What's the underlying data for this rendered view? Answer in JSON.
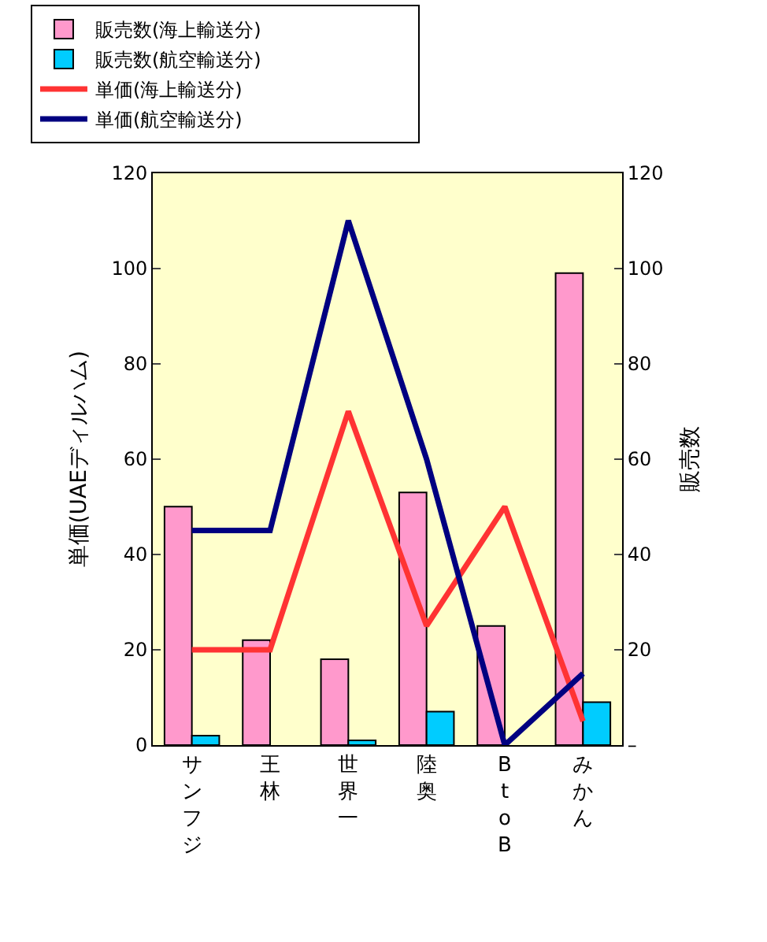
{
  "chart_data": {
    "type": "bar",
    "categories": [
      "サンフジ",
      "王林",
      "世界一",
      "陸奥",
      "BtoB",
      "みかん"
    ],
    "ylabel": "単価(UAEディルハム)",
    "y2label": "販売数",
    "ylim": [
      0,
      120
    ],
    "yticks": [
      0,
      20,
      40,
      60,
      80,
      100,
      120
    ],
    "y2lim": [
      0,
      120
    ],
    "y2ticks": [
      {
        "value": 0,
        "label": "–"
      },
      20,
      40,
      60,
      80,
      100,
      120
    ],
    "grid": false,
    "legend": "top",
    "marker": "none",
    "line_style": "solid",
    "series": [
      {
        "name": "販売数(海上輸送分)",
        "axis": "y2",
        "color": "#ff99cc",
        "values": [
          50,
          22,
          18,
          53,
          25,
          99
        ]
      },
      {
        "name": "販売数(航空輸送分)",
        "axis": "y2",
        "color": "#00ccff",
        "values": [
          2,
          0,
          1,
          7,
          0,
          9
        ]
      },
      {
        "name": "単価(海上輸送分)",
        "type": "line",
        "color": "#ff3333",
        "values": [
          20,
          20,
          70,
          25,
          50,
          5
        ]
      },
      {
        "name": "単価(航空輸送分)",
        "type": "line",
        "color": "#000080",
        "values": [
          45,
          45,
          110,
          60,
          0,
          15
        ]
      }
    ]
  }
}
